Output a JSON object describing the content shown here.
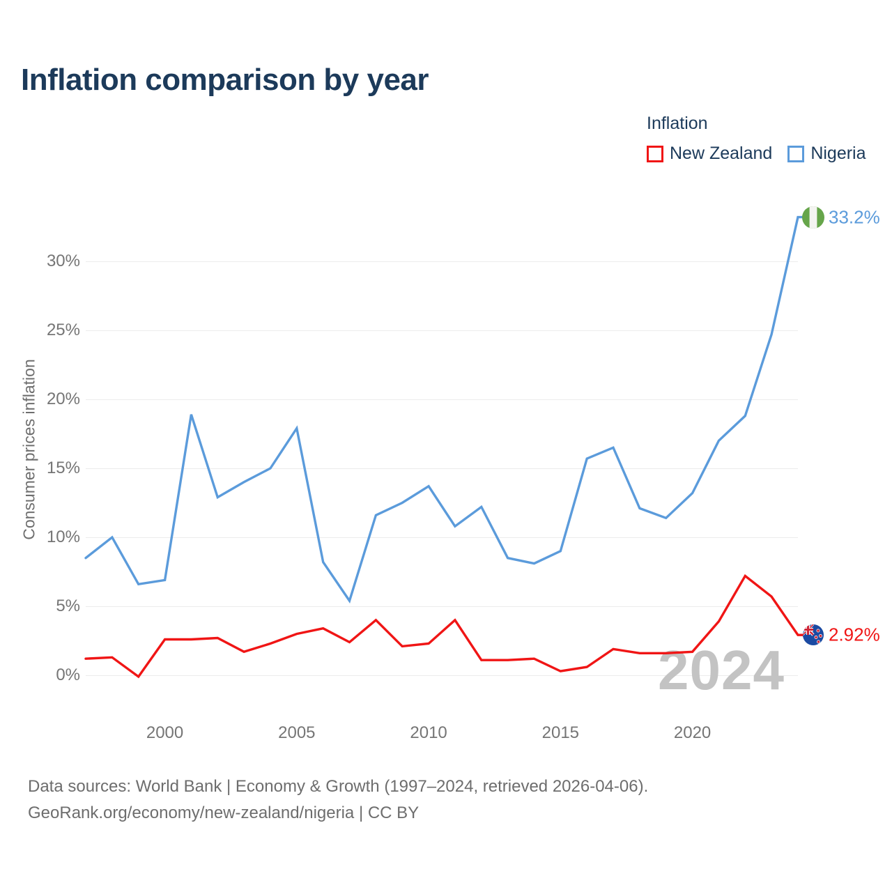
{
  "title": "Inflation comparison by year",
  "legend": {
    "title": "Inflation",
    "items": [
      {
        "label": "New Zealand",
        "color": "#f01515"
      },
      {
        "label": "Nigeria",
        "color": "#5b9bdb"
      }
    ]
  },
  "chart_data": {
    "type": "line",
    "title": "Inflation comparison by year",
    "ylabel": "Consumer prices inflation",
    "x": [
      1997,
      1998,
      1999,
      2000,
      2001,
      2002,
      2003,
      2004,
      2005,
      2006,
      2007,
      2008,
      2009,
      2010,
      2011,
      2012,
      2013,
      2014,
      2015,
      2016,
      2017,
      2018,
      2019,
      2020,
      2021,
      2022,
      2023,
      2024
    ],
    "series": [
      {
        "name": "New Zealand",
        "color": "#f01515",
        "values": [
          1.2,
          1.3,
          -0.1,
          2.6,
          2.6,
          2.7,
          1.7,
          2.3,
          3.0,
          3.4,
          2.4,
          4.0,
          2.1,
          2.3,
          4.0,
          1.1,
          1.1,
          1.2,
          0.3,
          0.6,
          1.9,
          1.6,
          1.6,
          1.7,
          3.9,
          7.2,
          5.7,
          2.92
        ],
        "end_label": "2.92%",
        "flag": "new-zealand-flag-icon"
      },
      {
        "name": "Nigeria",
        "color": "#5b9bdb",
        "values": [
          8.5,
          10.0,
          6.6,
          6.9,
          18.9,
          12.9,
          14.0,
          15.0,
          17.9,
          8.2,
          5.4,
          11.6,
          12.5,
          13.7,
          10.8,
          12.2,
          8.5,
          8.1,
          9.0,
          15.7,
          16.5,
          12.1,
          11.4,
          13.2,
          17.0,
          18.8,
          24.7,
          33.2
        ],
        "end_label": "33.2%",
        "flag": "nigeria-flag-icon"
      }
    ],
    "yticks": [
      "30%",
      "25%",
      "20%",
      "15%",
      "10%",
      "5%",
      "0%"
    ],
    "xticks": [
      "2000",
      "2005",
      "2010",
      "2015",
      "2020"
    ],
    "ylim": [
      -2,
      34
    ],
    "xlim": [
      1997,
      2024
    ],
    "grid": true,
    "legend_position": "top-right",
    "watermark": "2024"
  },
  "footer": {
    "line1": "Data sources: World Bank | Economy & Growth (1997–2024, retrieved 2026-04-06).",
    "line2": "GeoRank.org/economy/new-zealand/nigeria | CC BY"
  }
}
